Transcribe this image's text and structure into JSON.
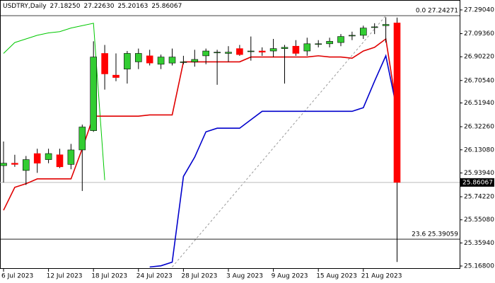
{
  "chart_data": {
    "type": "candlestick",
    "title": "USDTRY,Daily",
    "header_values": [
      "27.18250",
      "27.22630",
      "25.20163",
      "25.86067"
    ],
    "categories": [
      "6 Jul 2023",
      null,
      null,
      null,
      "12 Jul 2023",
      null,
      null,
      null,
      "18 Jul 2023",
      null,
      null,
      null,
      "24 Jul 2023",
      null,
      null,
      null,
      "28 Jul 2023",
      null,
      null,
      null,
      "3 Aug 2023",
      null,
      null,
      null,
      "9 Aug 2023",
      null,
      null,
      null,
      "15 Aug 2023",
      null,
      null,
      null,
      "21 Aug 2023",
      null,
      null,
      null
    ],
    "open": [
      26.0,
      26.02,
      25.96,
      26.1,
      26.05,
      26.09,
      26.01,
      26.13,
      26.29,
      26.93,
      26.75,
      26.8,
      26.86,
      26.91,
      26.84,
      26.85,
      26.86,
      26.86,
      26.91,
      26.94,
      26.93,
      26.97,
      26.95,
      26.95,
      26.95,
      26.97,
      26.99,
      26.95,
      27.01,
      27.01,
      27.02,
      27.08,
      27.08,
      27.15,
      27.16,
      27.1825
    ],
    "high": [
      26.2,
      26.09,
      26.08,
      26.14,
      26.14,
      26.14,
      26.18,
      26.34,
      27.03,
      27.0,
      26.93,
      26.95,
      26.97,
      26.96,
      26.92,
      26.97,
      26.91,
      26.96,
      26.97,
      26.96,
      26.99,
      27.0,
      27.07,
      26.98,
      27.05,
      27.0,
      27.04,
      27.06,
      27.04,
      27.06,
      27.09,
      27.11,
      27.16,
      27.18,
      27.23,
      27.2263
    ],
    "low": [
      25.86,
      25.99,
      25.84,
      25.94,
      26.02,
      25.98,
      25.97,
      25.79,
      26.28,
      26.63,
      26.7,
      26.68,
      26.8,
      26.83,
      26.8,
      26.83,
      26.84,
      26.82,
      26.84,
      26.67,
      26.86,
      26.91,
      26.87,
      26.91,
      26.9,
      26.68,
      26.91,
      26.91,
      26.98,
      26.98,
      26.99,
      27.04,
      27.05,
      27.09,
      27.02,
      25.20163
    ],
    "close": [
      26.02,
      26.01,
      26.05,
      26.02,
      26.1,
      25.99,
      26.13,
      26.32,
      26.9,
      26.76,
      26.73,
      26.93,
      26.93,
      26.85,
      26.9,
      26.9,
      26.86,
      26.88,
      26.95,
      26.94,
      26.94,
      26.92,
      26.95,
      26.94,
      26.97,
      26.98,
      26.93,
      27.01,
      27.01,
      27.03,
      27.07,
      27.08,
      27.14,
      27.15,
      27.17,
      25.86067
    ],
    "up_color": "#32cd32",
    "down_color": "#ff0000",
    "lines": [
      {
        "color": "#00c800",
        "values": [
          26.93,
          27.02,
          27.05,
          27.08,
          27.1,
          27.11,
          27.14,
          27.16,
          27.18,
          25.88,
          null,
          null,
          null,
          null,
          null,
          null,
          null,
          null,
          null,
          null,
          null,
          null,
          null,
          null,
          null,
          null,
          null,
          null,
          null,
          null,
          null,
          null,
          null,
          null,
          null,
          null
        ]
      },
      {
        "color": "#e00000",
        "values": [
          25.63,
          25.82,
          25.85,
          25.89,
          25.89,
          25.89,
          25.89,
          26.14,
          26.41,
          26.41,
          26.41,
          26.41,
          26.41,
          26.42,
          26.42,
          26.42,
          26.86,
          26.86,
          26.86,
          26.86,
          26.86,
          26.86,
          26.9,
          26.9,
          26.9,
          26.9,
          26.9,
          26.9,
          26.91,
          26.9,
          26.9,
          26.89,
          26.95,
          26.98,
          27.05,
          26.46
        ]
      },
      {
        "color": "#0000cc",
        "values": [
          null,
          null,
          null,
          null,
          null,
          null,
          null,
          null,
          null,
          null,
          null,
          null,
          null,
          25.16,
          25.17,
          25.2,
          25.91,
          26.07,
          26.28,
          26.31,
          26.31,
          26.31,
          26.38,
          26.45,
          26.45,
          26.45,
          26.45,
          26.45,
          26.45,
          26.45,
          26.45,
          26.45,
          26.48,
          26.7,
          26.91,
          26.46
        ]
      }
    ],
    "fib_levels": [
      {
        "value": 27.24271,
        "label": "0.0 27.24271"
      },
      {
        "value": 25.39059,
        "label": "23.6 25.39059"
      }
    ],
    "fib_trend": {
      "x": [
        15,
        34
      ],
      "y": [
        25.16,
        27.24271
      ]
    },
    "current_price": {
      "value": 25.86067,
      "label": "25.86067"
    },
    "ylim": [
      25.1446,
      27.3725
    ],
    "yticks": [
      {
        "value": 27.2904,
        "label": "27.29040"
      },
      {
        "value": 27.0936,
        "label": "27.09360"
      },
      {
        "value": 26.9022,
        "label": "26.90220"
      },
      {
        "value": 26.7054,
        "label": "26.70540"
      },
      {
        "value": 26.5194,
        "label": "26.51940"
      },
      {
        "value": 26.3226,
        "label": "26.32260"
      },
      {
        "value": 26.1308,
        "label": "26.13080"
      },
      {
        "value": 25.9394,
        "label": "25.93940"
      },
      {
        "value": 25.7422,
        "label": "25.74220"
      },
      {
        "value": 25.5508,
        "label": "25.55080"
      },
      {
        "value": 25.3594,
        "label": "25.35940"
      },
      {
        "value": 25.168,
        "label": "25.16800"
      }
    ]
  }
}
